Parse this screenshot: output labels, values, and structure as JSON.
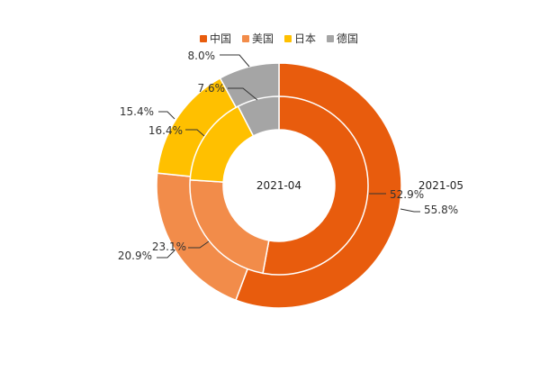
{
  "chart_data": {
    "type": "donut",
    "categories": [
      "中国",
      "美国",
      "日本",
      "德国"
    ],
    "colors": [
      "#E85C0D",
      "#F28C4A",
      "#FFC000",
      "#A5A5A5"
    ],
    "series": [
      {
        "name": "2021-04",
        "ring": "inner",
        "values": [
          52.9,
          23.1,
          16.4,
          7.6
        ],
        "labels": [
          "52.9%",
          "23.1%",
          "16.4%",
          "7.6%"
        ]
      },
      {
        "name": "2021-05",
        "ring": "outer",
        "values": [
          55.8,
          20.9,
          15.4,
          8.0
        ],
        "labels": [
          "55.8%",
          "20.9%",
          "15.4%",
          "8.0%"
        ]
      }
    ],
    "legend_position": "top-center"
  }
}
